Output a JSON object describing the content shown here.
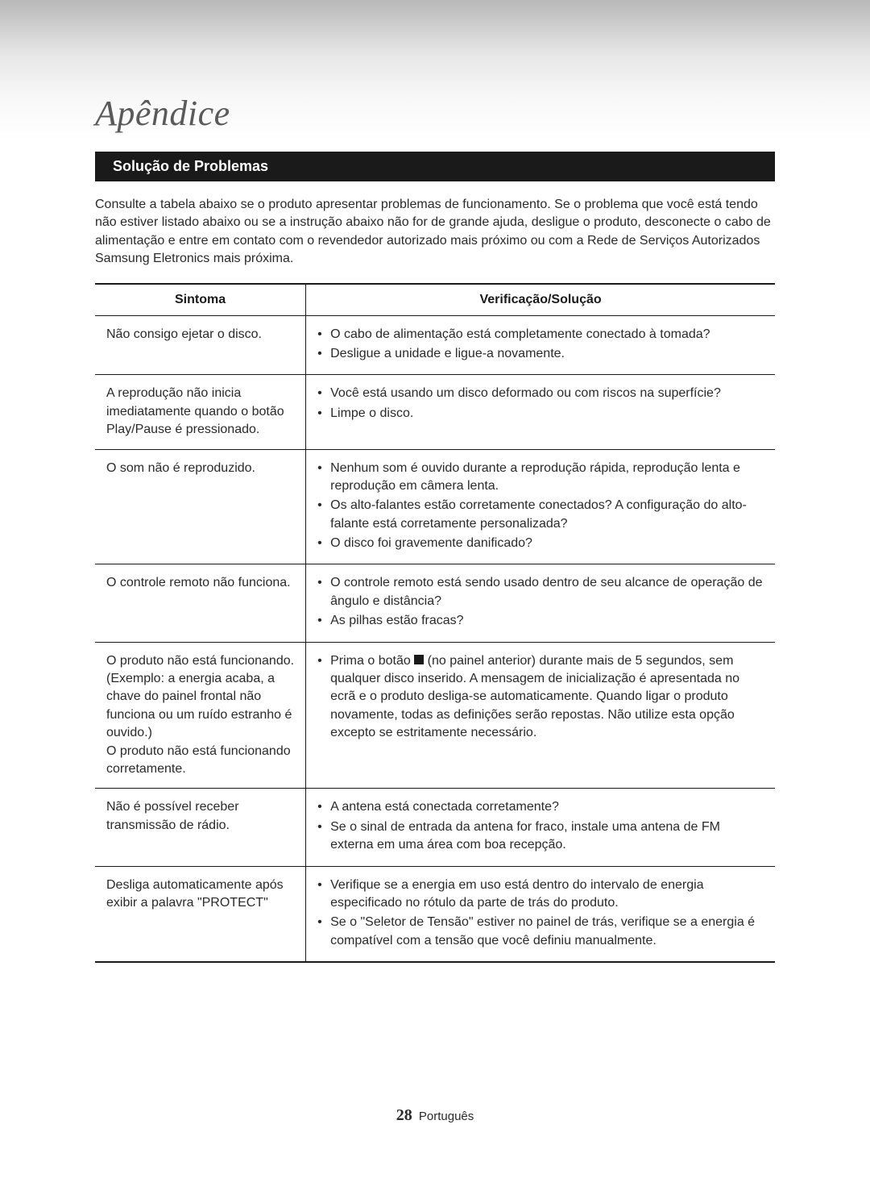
{
  "chapter_title": "Apêndice",
  "section_header": "Solução de Problemas",
  "intro_paragraph": "Consulte a tabela abaixo se o produto apresentar problemas de funcionamento. Se o problema que você está tendo não estiver listado abaixo ou se a instrução abaixo não for de grande ajuda, desligue o produto, desconecte o cabo de alimentação e entre em contato com o revendedor autorizado mais próximo ou com a Rede de Serviços Autorizados Samsung Eletronics mais próxima.",
  "table": {
    "header_symptom": "Sintoma",
    "header_solution": "Verificação/Solução",
    "rows": [
      {
        "symptom": "Não consigo ejetar o disco.",
        "solutions": [
          "O cabo de alimentação está completamente conectado à tomada?",
          "Desligue a unidade e ligue-a novamente."
        ]
      },
      {
        "symptom": "A reprodução não inicia imediatamente quando o botão Play/Pause é pressionado.",
        "solutions": [
          "Você está usando um disco deformado ou com riscos na superfície?",
          "Limpe o disco."
        ]
      },
      {
        "symptom": "O som não é reproduzido.",
        "solutions": [
          "Nenhum som é ouvido durante a reprodução rápida, reprodução lenta e reprodução em câmera lenta.",
          "Os alto-falantes estão corretamente conectados? A configuração do alto-falante está corretamente personalizada?",
          "O disco foi gravemente danificado?"
        ]
      },
      {
        "symptom": "O controle remoto não funciona.",
        "solutions": [
          "O controle remoto está sendo usado dentro de seu alcance de operação de ângulo e distância?",
          "As pilhas estão fracas?"
        ]
      },
      {
        "symptom": "O produto não está funcionando. (Exemplo: a energia acaba, a chave do painel frontal não funciona ou um ruído estranho é ouvido.)\nO produto não está funcionando corretamente.",
        "solution_prefix": "Prima o botão ",
        "solution_suffix": " (no painel anterior) durante mais de 5 segundos, sem qualquer disco inserido. A mensagem de inicialização é apresentada no ecrã e o produto desliga-se automaticamente. Quando ligar o produto novamente, todas as definições serão repostas. Não utilize esta opção excepto se estritamente necessário.",
        "has_stop_icon": true
      },
      {
        "symptom": "Não é possível receber transmissão de rádio.",
        "solutions": [
          "A antena está conectada corretamente?",
          "Se o sinal de entrada da antena for fraco, instale uma antena de FM externa em uma área com boa recepção."
        ]
      },
      {
        "symptom": "Desliga automaticamente após exibir a palavra \"PROTECT\"",
        "solutions": [
          "Verifique se a energia em uso está dentro do intervalo de energia especificado no rótulo da parte de trás do produto.",
          "Se o \"Seletor de Tensão\" estiver no painel de trás, verifique se a energia é compatível com a tensão que você definiu manualmente."
        ]
      }
    ]
  },
  "footer": {
    "page_number": "28",
    "language_label": "Português"
  },
  "colors": {
    "section_bg": "#1a1a1a",
    "text": "#2a2a2a",
    "title": "#5a5a5a",
    "border": "#1a1a1a"
  },
  "typography": {
    "title_fontsize": 44,
    "section_fontsize": 18,
    "body_fontsize": 16,
    "title_fontfamily": "Georgia",
    "body_fontfamily": "Arial"
  }
}
